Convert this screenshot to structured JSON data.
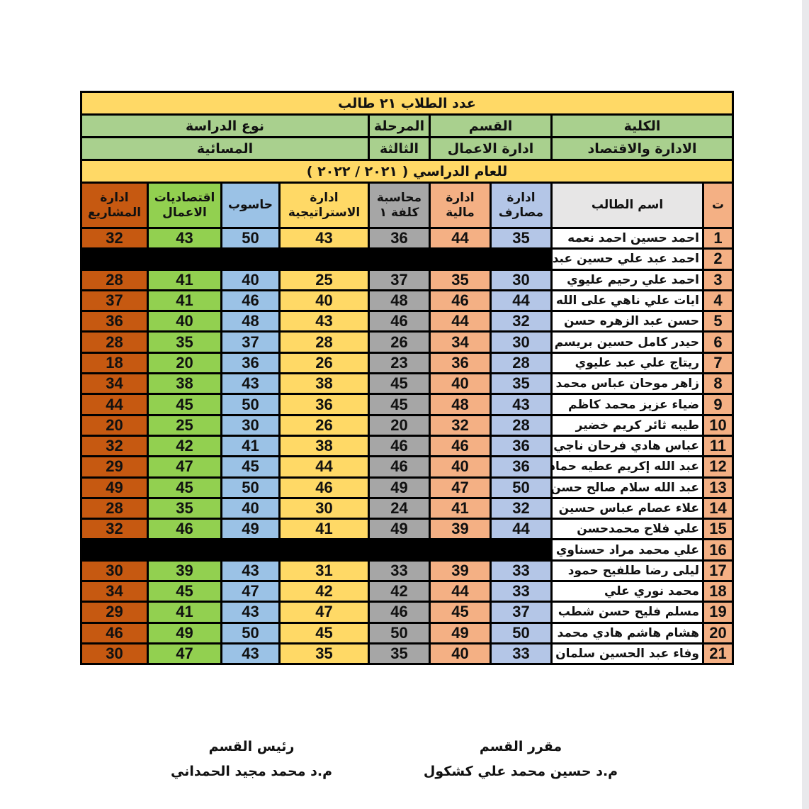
{
  "title": "عدد الطلاب ٢١ طالب",
  "info_labels": {
    "college": "الكلية",
    "department": "القسم",
    "stage": "المرحلة",
    "study_type": "نوع الدراسة"
  },
  "info_values": {
    "college": "الادارة والاقتصاد",
    "department": "ادارة الاعمال",
    "stage": "الثالثة",
    "study_type": "المسائية"
  },
  "academic_year": "للعام الدراسي ( ٢٠٢١ / ٢٠٢٢ )",
  "headers": {
    "index": "ت",
    "name": "اسم الطالب",
    "subjects": [
      "ادارة\nمصارف",
      "ادارة\nمالية",
      "محاسبة\nكلفة ١",
      "ادارة\nالاستراتيجية",
      "حاسوب",
      "اقتصاديات\nالاعمال",
      "ادارة\nالمشاريع"
    ]
  },
  "subject_colors": [
    "#b4c6e7",
    "#f4b084",
    "#a6a6a6",
    "#ffd966",
    "#9bc2e6",
    "#92d050",
    "#c65911"
  ],
  "rows": [
    {
      "n": "1",
      "name": "احمد حسين احمد نعمه",
      "marks": [
        "35",
        "44",
        "36",
        "43",
        "50",
        "43",
        "32"
      ]
    },
    {
      "n": "2",
      "name": "احمد عبد علي حسين عبد",
      "marks": null
    },
    {
      "n": "3",
      "name": "احمد علي رحيم عليوي",
      "marks": [
        "30",
        "35",
        "37",
        "25",
        "40",
        "41",
        "28"
      ]
    },
    {
      "n": "4",
      "name": "ايات علي ناهي على الله",
      "marks": [
        "44",
        "46",
        "48",
        "40",
        "46",
        "41",
        "37"
      ]
    },
    {
      "n": "5",
      "name": "حسن عبد الزهره حسن",
      "marks": [
        "32",
        "44",
        "46",
        "43",
        "48",
        "40",
        "36"
      ]
    },
    {
      "n": "6",
      "name": "حيدر كامل حسين بريسم",
      "marks": [
        "30",
        "34",
        "26",
        "28",
        "37",
        "35",
        "28"
      ]
    },
    {
      "n": "7",
      "name": "ريتاج علي عبد عليوي",
      "marks": [
        "28",
        "36",
        "23",
        "26",
        "36",
        "20",
        "18"
      ]
    },
    {
      "n": "8",
      "name": "زاهر موحان عباس محمد",
      "marks": [
        "35",
        "40",
        "45",
        "38",
        "43",
        "38",
        "34"
      ]
    },
    {
      "n": "9",
      "name": "ضياء عزيز محمد كاظم",
      "marks": [
        "43",
        "48",
        "45",
        "36",
        "50",
        "45",
        "44"
      ]
    },
    {
      "n": "10",
      "name": "طيبه ثائر كريم خضير",
      "marks": [
        "28",
        "32",
        "20",
        "26",
        "30",
        "25",
        "20"
      ]
    },
    {
      "n": "11",
      "name": "عباس هادي فرحان ناجي",
      "marks": [
        "36",
        "46",
        "46",
        "38",
        "41",
        "42",
        "32"
      ]
    },
    {
      "n": "12",
      "name": "عبد الله إكريم عطيه حمادي",
      "marks": [
        "36",
        "40",
        "46",
        "44",
        "45",
        "47",
        "29"
      ]
    },
    {
      "n": "13",
      "name": "عبد الله سلام صالح حسن",
      "marks": [
        "50",
        "47",
        "49",
        "46",
        "50",
        "45",
        "49"
      ]
    },
    {
      "n": "14",
      "name": "علاء عصام عباس حسين",
      "marks": [
        "32",
        "41",
        "24",
        "30",
        "40",
        "35",
        "28"
      ]
    },
    {
      "n": "15",
      "name": "علي فلاح محمدحسن",
      "marks": [
        "44",
        "39",
        "49",
        "41",
        "49",
        "46",
        "32"
      ]
    },
    {
      "n": "16",
      "name": "علي محمد مراد حسناوي",
      "marks": null
    },
    {
      "n": "17",
      "name": "ليلى رضا طلفيح حمود",
      "marks": [
        "33",
        "39",
        "33",
        "31",
        "43",
        "39",
        "30"
      ]
    },
    {
      "n": "18",
      "name": "محمد نوري علي",
      "marks": [
        "33",
        "44",
        "42",
        "42",
        "47",
        "45",
        "34"
      ]
    },
    {
      "n": "19",
      "name": "مسلم فليح حسن شطب",
      "marks": [
        "37",
        "45",
        "46",
        "47",
        "43",
        "41",
        "29"
      ]
    },
    {
      "n": "20",
      "name": "هشام هاشم هادي محمد",
      "marks": [
        "50",
        "49",
        "50",
        "45",
        "50",
        "49",
        "46"
      ]
    },
    {
      "n": "21",
      "name": "وفاء عبد الحسين سلمان",
      "marks": [
        "33",
        "40",
        "35",
        "35",
        "43",
        "47",
        "30"
      ]
    }
  ],
  "signatures": {
    "rapporteur_title": "مقرر القسم",
    "rapporteur_name": "م.د حسين محمد علي كشكول",
    "head_title": "رئيس القسم",
    "head_name": "م.د محمد مجيد الحمداني"
  }
}
